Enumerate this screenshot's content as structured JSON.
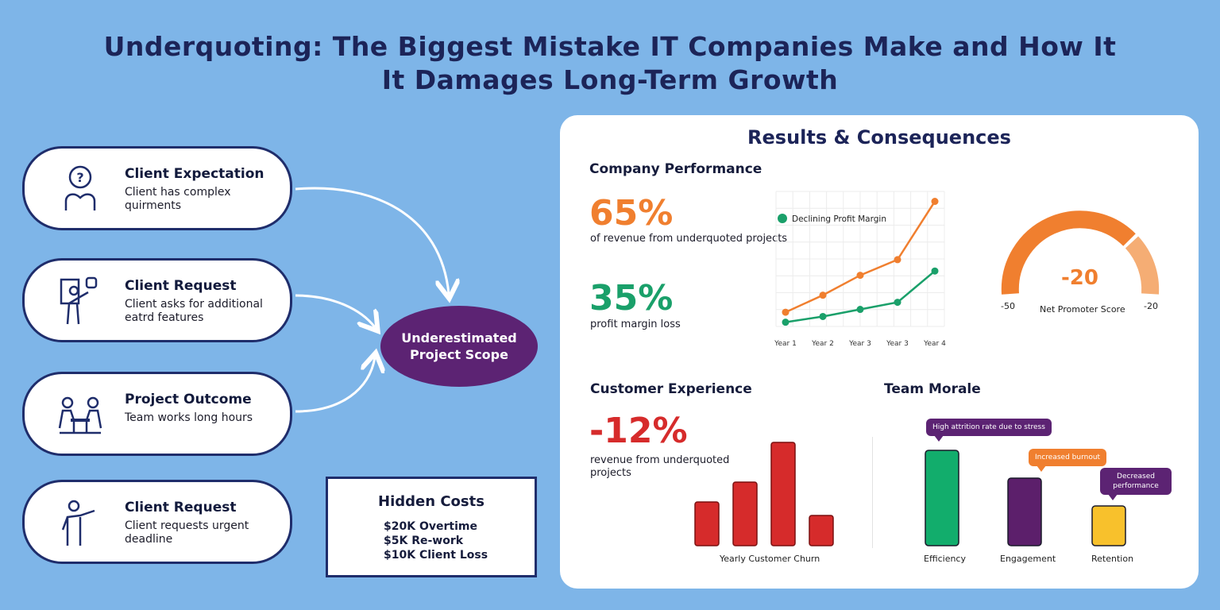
{
  "title": {
    "line1": "Underquoting:  The Biggest Mistake IT Companies Make and How It",
    "line2": "It Damages Long-Term Growth"
  },
  "steps": [
    {
      "title": "Client Expectation",
      "desc": "Client has complex quirments",
      "icon": "question-person-icon"
    },
    {
      "title": "Client Request",
      "desc": "Client asks for additional eatrd features",
      "icon": "presenter-icon"
    },
    {
      "title": "Project Outcome",
      "desc": "Team works long hours",
      "icon": "team-meeting-icon"
    },
    {
      "title": "Client Request",
      "desc": "Client requests urgent deadline",
      "icon": "pointing-person-icon"
    }
  ],
  "scope": {
    "line1": "Underestimated",
    "line2": "Project Scope"
  },
  "hidden_costs": {
    "title": "Hidden Costs",
    "items": [
      "$20K Overtime",
      "$5K Re-work",
      "$10K Client Loss"
    ]
  },
  "results": {
    "title": "Results & Consequences",
    "company": {
      "title": "Company Performance",
      "stat1": {
        "value": "65%",
        "caption": "of revenue from underquoted projects"
      },
      "stat2": {
        "value": "35%",
        "caption": "profit margin loss"
      }
    },
    "customer": {
      "title": "Customer Experience",
      "stat": {
        "value": "-12%",
        "caption": "revenue from underquoted projects"
      }
    },
    "team": {
      "title": "Team Morale"
    },
    "nps": {
      "value": "-20",
      "label": "Net Promoter Score",
      "min_label": "-50",
      "max_label": "-20"
    }
  },
  "colors": {
    "navy": "#1c2458",
    "orange": "#f07f2f",
    "green": "#1aa06a",
    "red": "#d62b2b",
    "purple": "#5c2373",
    "yellow": "#f8c12c"
  },
  "chart_data": [
    {
      "type": "line",
      "x": [
        "Year 1",
        "Year 2",
        "Year 3",
        "Year 3",
        "Year 4"
      ],
      "series": [
        {
          "name": "",
          "color": "#f07f2f",
          "values": [
            20,
            44,
            72,
            94,
            176
          ]
        },
        {
          "name": "Declining Profit Margin",
          "color": "#1aa06a",
          "values": [
            6,
            14,
            24,
            34,
            78
          ]
        }
      ],
      "ylim": [
        0,
        190
      ],
      "grid": true,
      "legend": "top-left"
    },
    {
      "type": "bar",
      "xlabel": "Yearly Customer Churn",
      "categories": [
        "",
        "",
        "",
        ""
      ],
      "values": [
        55,
        80,
        130,
        38
      ],
      "color": "#d62b2b",
      "ylim": [
        0,
        140
      ]
    },
    {
      "type": "bar",
      "categories": [
        "Efficiency",
        "Engagement",
        "Retention"
      ],
      "values": [
        120,
        85,
        50
      ],
      "colors": [
        "#12ad6c",
        "#5c1f6b",
        "#f8c12c"
      ],
      "annotations": [
        "High attrition rate due to stress",
        "Increased burnout",
        "Decreased performance"
      ],
      "ylim": [
        0,
        130
      ]
    }
  ]
}
